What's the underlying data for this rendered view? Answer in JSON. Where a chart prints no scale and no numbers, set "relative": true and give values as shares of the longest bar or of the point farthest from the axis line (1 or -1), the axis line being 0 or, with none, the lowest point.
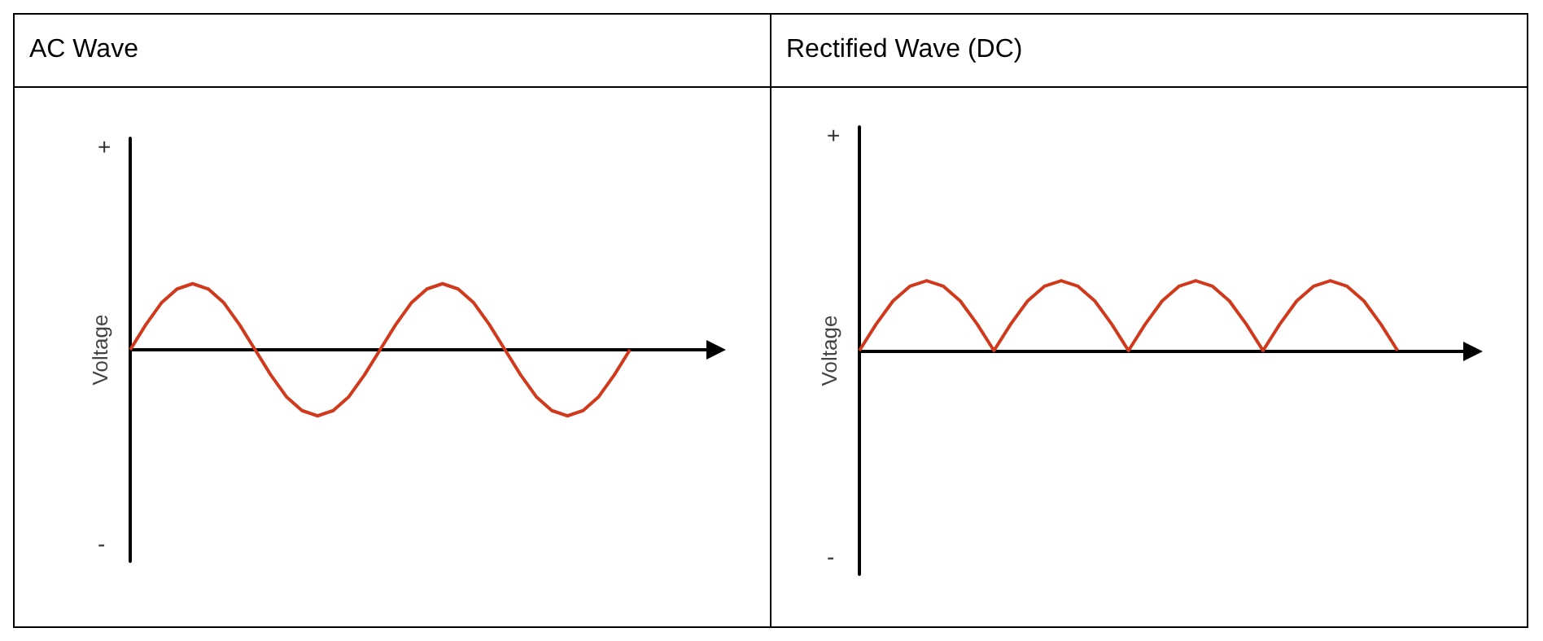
{
  "chart_data": [
    {
      "type": "line",
      "title": "AC Wave",
      "ylabel": "Voltage",
      "relative": true,
      "annotations": [
        "+",
        "-"
      ],
      "categories": [
        null,
        null,
        null,
        null,
        null,
        null,
        null,
        null,
        null,
        null,
        null,
        null,
        null,
        null,
        null,
        null,
        null,
        null,
        null,
        null,
        null,
        null,
        null,
        null,
        null,
        null,
        null,
        null,
        null,
        null,
        null,
        null,
        null,
        null,
        null,
        null,
        null,
        null
      ],
      "series": [
        {
          "color": "#d0391c",
          "values": [
            0,
            0.38,
            0.71,
            0.92,
            1,
            0.92,
            0.71,
            0.38,
            0,
            -0.38,
            -0.71,
            -0.92,
            -1,
            -0.92,
            -0.71,
            -0.38,
            0,
            0.38,
            0.71,
            0.92,
            1,
            0.92,
            0.71,
            0.38,
            0,
            -0.38,
            -0.71,
            -0.92,
            -1,
            -0.92,
            -0.71,
            -0.38,
            0,
            null,
            null,
            null,
            null,
            null
          ]
        }
      ]
    },
    {
      "type": "line",
      "title": "Rectified Wave (DC)",
      "ylabel": "Voltage",
      "relative": true,
      "annotations": [
        "+",
        "-"
      ],
      "categories": [
        null,
        null,
        null,
        null,
        null,
        null,
        null,
        null,
        null,
        null,
        null,
        null,
        null,
        null,
        null,
        null,
        null,
        null,
        null,
        null,
        null,
        null,
        null,
        null,
        null,
        null,
        null,
        null,
        null,
        null,
        null,
        null,
        null,
        null,
        null,
        null,
        null
      ],
      "series": [
        {
          "color": "#d0391c",
          "values": [
            0,
            0.38,
            0.71,
            0.92,
            1,
            0.92,
            0.71,
            0.38,
            0,
            0.38,
            0.71,
            0.92,
            1,
            0.92,
            0.71,
            0.38,
            0,
            0.38,
            0.71,
            0.92,
            1,
            0.92,
            0.71,
            0.38,
            0,
            0.38,
            0.71,
            0.92,
            1,
            0.92,
            0.71,
            0.38,
            0,
            null,
            null,
            null,
            null
          ]
        }
      ]
    }
  ]
}
